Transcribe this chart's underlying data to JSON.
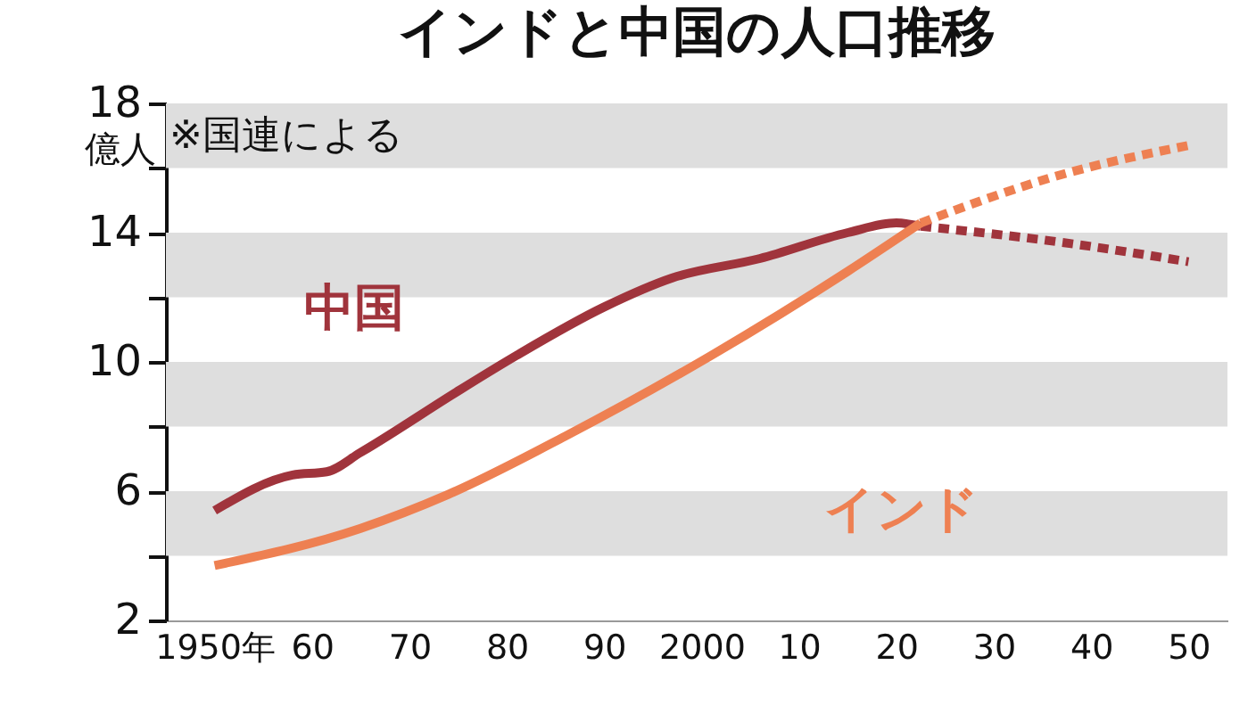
{
  "chart_data": {
    "type": "line",
    "title": "インドと中国の人口推移",
    "ylabel": "億人",
    "annotations": [
      "※国連による"
    ],
    "xlim": [
      1945,
      2054
    ],
    "ylim": [
      2,
      18
    ],
    "xticks": [
      {
        "value": 1950,
        "label": "1950年"
      },
      {
        "value": 1960,
        "label": "60"
      },
      {
        "value": 1970,
        "label": "70"
      },
      {
        "value": 1980,
        "label": "80"
      },
      {
        "value": 1990,
        "label": "90"
      },
      {
        "value": 2000,
        "label": "2000"
      },
      {
        "value": 2010,
        "label": "10"
      },
      {
        "value": 2020,
        "label": "20"
      },
      {
        "value": 2030,
        "label": "30"
      },
      {
        "value": 2040,
        "label": "40"
      },
      {
        "value": 2050,
        "label": "50"
      }
    ],
    "yticks": [
      2,
      {
        "value": 4,
        "label": null
      },
      6,
      {
        "value": 8,
        "label": null
      },
      10,
      {
        "value": 12,
        "label": null
      },
      14,
      {
        "value": 16,
        "label": null
      },
      18
    ],
    "bands": [
      {
        "axis": "y",
        "from": 4,
        "to": 6,
        "color": "#dedede"
      },
      {
        "axis": "y",
        "from": 8,
        "to": 10,
        "color": "#dedede"
      },
      {
        "axis": "y",
        "from": 12,
        "to": 14,
        "color": "#dedede"
      },
      {
        "axis": "y",
        "from": 16,
        "to": 18,
        "color": "#dedede"
      }
    ],
    "series": [
      {
        "name": "中国",
        "color": "#a0343c",
        "line_style": "solid",
        "x": [
          1950,
          1958,
          1961.5,
          1965,
          1975,
          1981,
          1990,
          1997,
          2006,
          2015,
          2020,
          2022.5
        ],
        "values": [
          5.4,
          6.5,
          6.6,
          7.2,
          9.1,
          10.2,
          11.7,
          12.6,
          13.2,
          14.0,
          14.3,
          14.2
        ]
      },
      {
        "color": "#a0343c",
        "line_style": "dashed",
        "x": [
          2022.5,
          2037,
          2050
        ],
        "values": [
          14.2,
          13.7,
          13.1
        ]
      },
      {
        "name": "インド",
        "color": "#ee8052",
        "line_style": "solid",
        "x": [
          1950,
          1965,
          1974,
          1986,
          2001,
          2015,
          2022.5
        ],
        "values": [
          3.7,
          4.85,
          5.9,
          7.7,
          10.2,
          12.8,
          14.3
        ]
      },
      {
        "color": "#ee8052",
        "line_style": "dashed",
        "x": [
          2022.5,
          2037,
          2050
        ],
        "values": [
          14.3,
          15.8,
          16.7
        ]
      }
    ]
  }
}
